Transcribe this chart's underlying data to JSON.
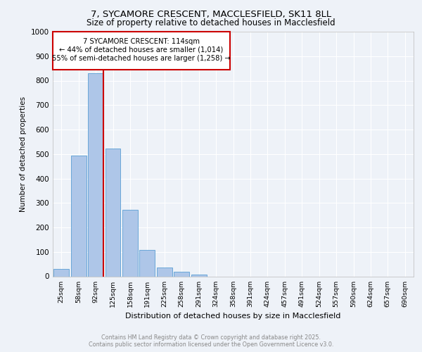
{
  "title_line1": "7, SYCAMORE CRESCENT, MACCLESFIELD, SK11 8LL",
  "title_line2": "Size of property relative to detached houses in Macclesfield",
  "bar_labels": [
    "25sqm",
    "58sqm",
    "92sqm",
    "125sqm",
    "158sqm",
    "191sqm",
    "225sqm",
    "258sqm",
    "291sqm",
    "324sqm",
    "358sqm",
    "391sqm",
    "424sqm",
    "457sqm",
    "491sqm",
    "524sqm",
    "557sqm",
    "590sqm",
    "624sqm",
    "657sqm",
    "690sqm"
  ],
  "bar_values": [
    30,
    493,
    830,
    521,
    272,
    107,
    35,
    20,
    8,
    0,
    0,
    0,
    0,
    0,
    0,
    0,
    0,
    0,
    0,
    0,
    0
  ],
  "bar_color": "#aec6e8",
  "bar_edge_color": "#5a9fd4",
  "ylabel": "Number of detached properties",
  "xlabel": "Distribution of detached houses by size in Macclesfield",
  "ylim": [
    0,
    1000
  ],
  "yticks": [
    0,
    100,
    200,
    300,
    400,
    500,
    600,
    700,
    800,
    900,
    1000
  ],
  "vline_color": "#cc0000",
  "annotation_title": "7 SYCAMORE CRESCENT: 114sqm",
  "annotation_line2": "← 44% of detached houses are smaller (1,014)",
  "annotation_line3": "55% of semi-detached houses are larger (1,258) →",
  "annotation_box_color": "#cc0000",
  "footer_line1": "Contains HM Land Registry data © Crown copyright and database right 2025.",
  "footer_line2": "Contains public sector information licensed under the Open Government Licence v3.0.",
  "bg_color": "#eef2f8",
  "plot_bg_color": "#eef2f8"
}
